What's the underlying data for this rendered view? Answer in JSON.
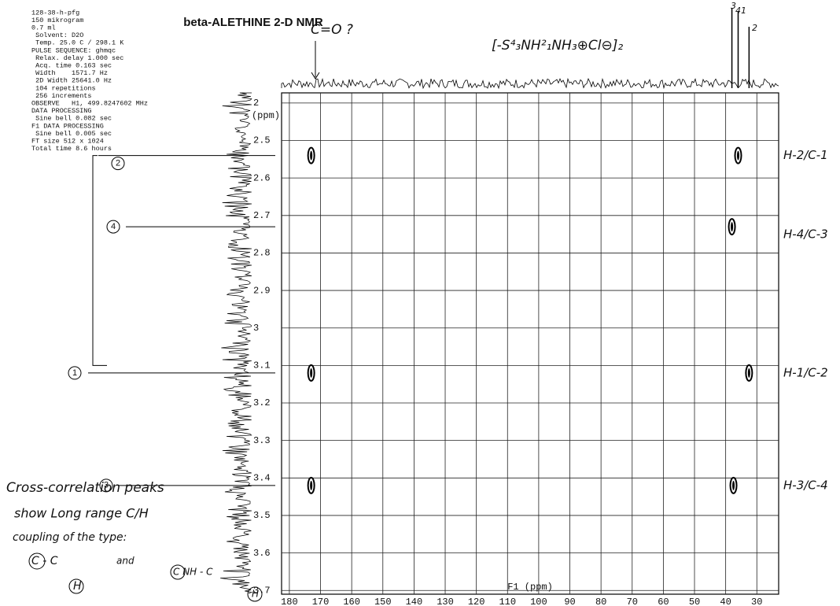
{
  "params": [
    "128-38-h-pfg",
    "150 mikrogram",
    "0.7 ml",
    " Solvent: D2O",
    " Temp. 25.0 C / 298.1 K",
    "PULSE SEQUENCE: ghmqc",
    " Relax. delay 1.000 sec",
    " Acq. time 0.163 sec",
    " Width    1571.7 Hz",
    " 2D Width 25641.0 Hz",
    " 104 repetitions",
    " 256 increments",
    "OBSERVE   H1, 499.8247602 MHz",
    "DATA PROCESSING",
    " Sine bell 0.082 sec",
    "F1 DATA PROCESSING",
    " Sine bell 0.005 sec",
    "FT size 512 x 1024",
    "Total time 8.6 hours"
  ],
  "chart_data": {
    "type": "scatter",
    "title": "beta-ALETHINE 2-D NMR",
    "x_label": "F1 (ppm)",
    "y_label": "(ppm)",
    "xlim": [
      182.5,
      23
    ],
    "ylim": [
      3.71,
      2.373
    ],
    "xticks": [
      180,
      170,
      160,
      150,
      140,
      130,
      120,
      110,
      100,
      90,
      80,
      70,
      60,
      50,
      40,
      30
    ],
    "yticks": [
      {
        "value": 2.4,
        "label": "2"
      },
      2.5,
      2.6,
      2.7,
      2.8,
      2.9,
      3.0,
      3.1,
      3.2,
      3.3,
      3.4,
      3.5,
      3.6,
      3.7
    ],
    "grid": true,
    "color": "#000000",
    "x": [
      173,
      36,
      38,
      173,
      32.5,
      173,
      37.5
    ],
    "values": [
      2.54,
      2.54,
      2.73,
      3.12,
      3.12,
      3.42,
      3.42
    ],
    "peak_labels": [
      "H-2/C-1",
      "H-4/C-3",
      "H-1/C-2",
      "H-3/C-4"
    ],
    "proton_labels": [
      "2",
      "4",
      "1",
      "3"
    ],
    "carbon_labels": [
      "3",
      "4",
      "1",
      "2"
    ],
    "annotations": [
      "C=O ?",
      "[-S⁴₃NH²₁NH₃⊕Cl⊖]₂",
      "Cross-correlation peaks",
      "show Long range C/H",
      "coupling of the type:",
      "C - C",
      "and",
      "H",
      "C NH - C",
      "H"
    ]
  }
}
